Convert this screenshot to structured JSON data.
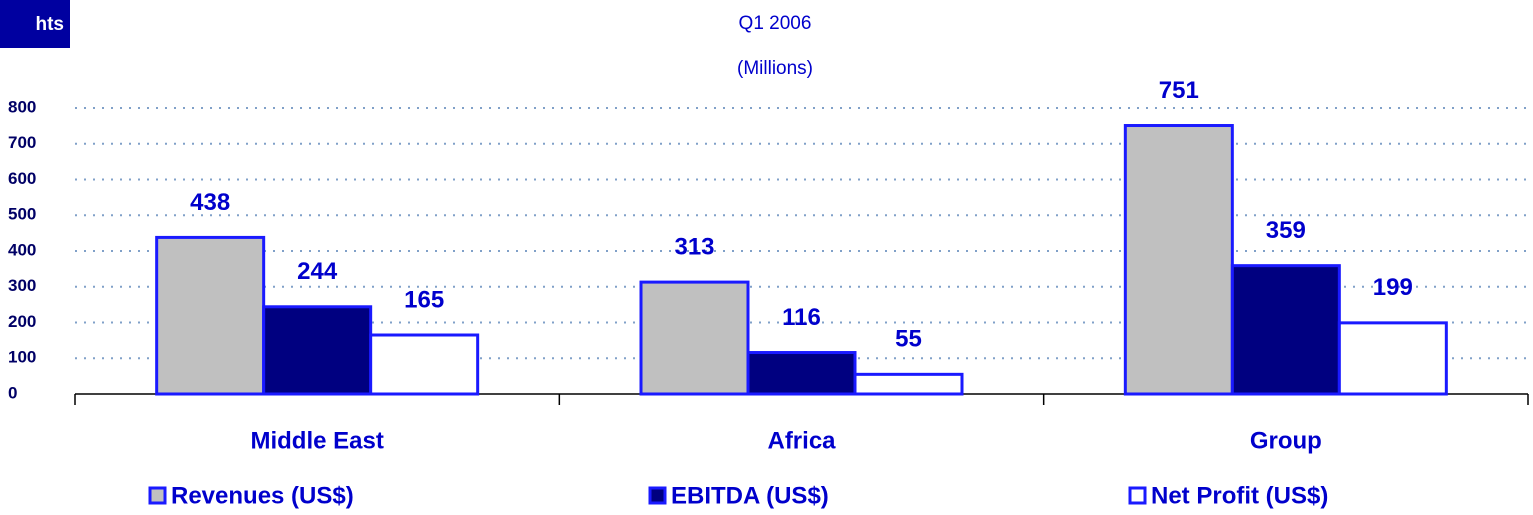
{
  "badge": "hts",
  "chart_data": {
    "type": "bar",
    "title": "Q1 2006",
    "subtitle": "(Millions)",
    "categories": [
      "Middle East",
      "Africa",
      "Group"
    ],
    "series": [
      {
        "name": "Revenues (US$)",
        "color": "#c0c0c0",
        "values": [
          438,
          313,
          751
        ]
      },
      {
        "name": "EBITDA (US$)",
        "color": "#000080",
        "values": [
          244,
          116,
          359
        ]
      },
      {
        "name": "Net Profit (US$)",
        "color": "#ffffff",
        "values": [
          165,
          55,
          199
        ]
      }
    ],
    "ylim": [
      0,
      800
    ],
    "yticks": [
      0,
      100,
      200,
      300,
      400,
      500,
      600,
      700,
      800
    ],
    "grid": true,
    "legend": "bottom"
  }
}
